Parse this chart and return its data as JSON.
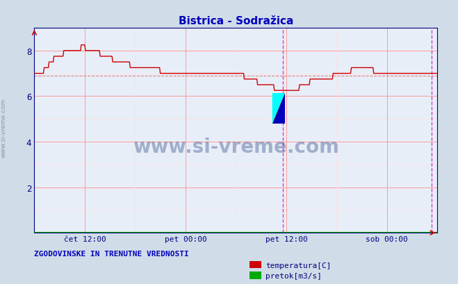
{
  "title": "Bistrica - Sodražica",
  "bg_color": "#d0dce8",
  "plot_bg_color": "#e8eef8",
  "title_color": "#0000bb",
  "axis_color": "#000080",
  "grid_color_major": "#ff9999",
  "grid_color_minor": "#ffdddd",
  "temp_color": "#cc0000",
  "flow_color": "#00aa00",
  "vline_color": "#cc44cc",
  "xlabel_color": "#000080",
  "ylabel_color": "#000080",
  "watermark_color": "#1a3a7a",
  "bottom_text": "ZGODOVINSKE IN TRENUTNE VREDNOSTI",
  "bottom_text_color": "#0000bb",
  "legend_labels": [
    "temperatura[C]",
    "pretok[m3/s]"
  ],
  "legend_colors": [
    "#cc0000",
    "#00aa00"
  ],
  "xlim": [
    0,
    576
  ],
  "ylim": [
    0,
    9
  ],
  "yticks": [
    2,
    4,
    6,
    8
  ],
  "xtick_positions": [
    72,
    216,
    360,
    504
  ],
  "xtick_labels": [
    "čet 12:00",
    "pet 00:00",
    "pet 12:00",
    "sob 00:00"
  ],
  "vline_positions": [
    355,
    568
  ],
  "n_points": 576,
  "avg_line_color": "#dd6666"
}
